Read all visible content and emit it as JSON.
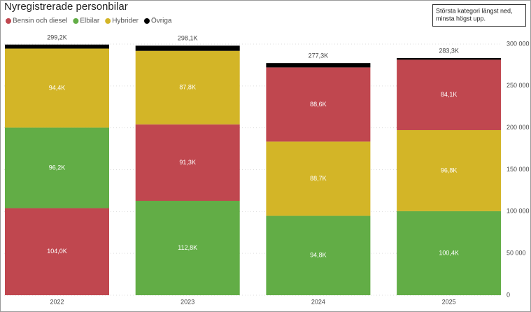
{
  "chart_data": {
    "type": "stacked-bar",
    "title": "Nyregistrerade personbilar",
    "annotation": [
      "Största kategori längst ned,",
      "minsta högst upp."
    ],
    "categories": [
      "2022",
      "2023",
      "2024",
      "2025"
    ],
    "stack_sort": "descending",
    "series": [
      {
        "name": "Bensin och  diesel",
        "color": "#c0474f",
        "values": [
          104000,
          91300,
          88600,
          84100
        ],
        "value_labels": [
          "104,0K",
          "91,3K",
          "88,6K",
          "84,1K"
        ]
      },
      {
        "name": "Elbilar",
        "color": "#62ad46",
        "values": [
          96200,
          112800,
          94800,
          100400
        ],
        "value_labels": [
          "96,2K",
          "112,8K",
          "94,8K",
          "100,4K"
        ]
      },
      {
        "name": "Hybrider",
        "color": "#d3b527",
        "values": [
          94400,
          87800,
          88700,
          96800
        ],
        "value_labels": [
          "94,4K",
          "87,8K",
          "88,7K",
          "96,8K"
        ]
      },
      {
        "name": "Övriga",
        "color": "#000000",
        "values": [
          4800,
          6200,
          5200,
          2000
        ]
      }
    ],
    "totals": [
      299200,
      298100,
      277300,
      283300
    ],
    "total_labels": [
      "299,2K",
      "298,1K",
      "277,3K",
      "283,3K"
    ],
    "ylim": [
      0,
      300000
    ],
    "yticks": [
      0,
      {
        "value": 50000,
        "label": "50 000"
      },
      {
        "value": 100000,
        "label": "100 000"
      },
      {
        "value": 150000,
        "label": "150 000"
      },
      {
        "value": 200000,
        "label": "200 000"
      },
      {
        "value": 250000,
        "label": "250 000"
      },
      {
        "value": 300000,
        "label": "300 000"
      }
    ],
    "grid": true
  }
}
